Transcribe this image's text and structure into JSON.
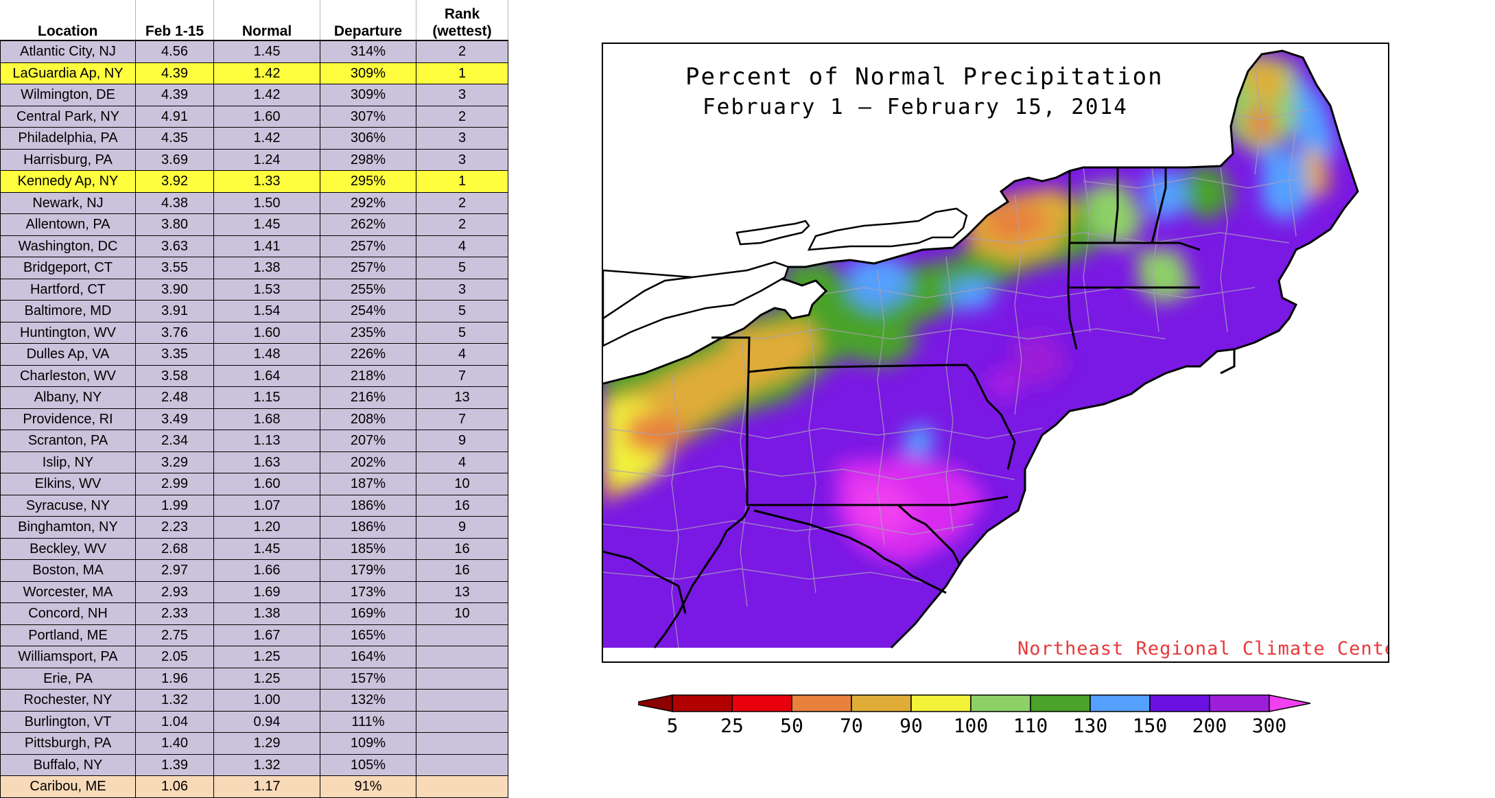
{
  "table": {
    "headers": {
      "location": "Location",
      "feb": "Feb 1-15",
      "normal": "Normal",
      "departure": "Departure",
      "rank": "Rank\n(wettest)"
    },
    "rows": [
      {
        "location": "Atlantic City, NJ",
        "feb": "4.56",
        "normal": "1.45",
        "departure": "314%",
        "rank": "2",
        "style": "normal"
      },
      {
        "location": "LaGuardia Ap, NY",
        "feb": "4.39",
        "normal": "1.42",
        "departure": "309%",
        "rank": "1",
        "style": "highlight"
      },
      {
        "location": "Wilmington, DE",
        "feb": "4.39",
        "normal": "1.42",
        "departure": "309%",
        "rank": "3",
        "style": "normal"
      },
      {
        "location": "Central Park, NY",
        "feb": "4.91",
        "normal": "1.60",
        "departure": "307%",
        "rank": "2",
        "style": "normal"
      },
      {
        "location": "Philadelphia, PA",
        "feb": "4.35",
        "normal": "1.42",
        "departure": "306%",
        "rank": "3",
        "style": "normal"
      },
      {
        "location": "Harrisburg, PA",
        "feb": "3.69",
        "normal": "1.24",
        "departure": "298%",
        "rank": "3",
        "style": "normal"
      },
      {
        "location": "Kennedy Ap, NY",
        "feb": "3.92",
        "normal": "1.33",
        "departure": "295%",
        "rank": "1",
        "style": "highlight"
      },
      {
        "location": "Newark, NJ",
        "feb": "4.38",
        "normal": "1.50",
        "departure": "292%",
        "rank": "2",
        "style": "normal"
      },
      {
        "location": "Allentown, PA",
        "feb": "3.80",
        "normal": "1.45",
        "departure": "262%",
        "rank": "2",
        "style": "normal"
      },
      {
        "location": "Washington, DC",
        "feb": "3.63",
        "normal": "1.41",
        "departure": "257%",
        "rank": "4",
        "style": "normal"
      },
      {
        "location": "Bridgeport, CT",
        "feb": "3.55",
        "normal": "1.38",
        "departure": "257%",
        "rank": "5",
        "style": "normal"
      },
      {
        "location": "Hartford, CT",
        "feb": "3.90",
        "normal": "1.53",
        "departure": "255%",
        "rank": "3",
        "style": "normal"
      },
      {
        "location": "Baltimore, MD",
        "feb": "3.91",
        "normal": "1.54",
        "departure": "254%",
        "rank": "5",
        "style": "normal"
      },
      {
        "location": "Huntington, WV",
        "feb": "3.76",
        "normal": "1.60",
        "departure": "235%",
        "rank": "5",
        "style": "normal"
      },
      {
        "location": "Dulles Ap, VA",
        "feb": "3.35",
        "normal": "1.48",
        "departure": "226%",
        "rank": "4",
        "style": "normal"
      },
      {
        "location": "Charleston, WV",
        "feb": "3.58",
        "normal": "1.64",
        "departure": "218%",
        "rank": "7",
        "style": "normal"
      },
      {
        "location": "Albany, NY",
        "feb": "2.48",
        "normal": "1.15",
        "departure": "216%",
        "rank": "13",
        "style": "normal"
      },
      {
        "location": "Providence, RI",
        "feb": "3.49",
        "normal": "1.68",
        "departure": "208%",
        "rank": "7",
        "style": "normal"
      },
      {
        "location": "Scranton, PA",
        "feb": "2.34",
        "normal": "1.13",
        "departure": "207%",
        "rank": "9",
        "style": "normal"
      },
      {
        "location": "Islip, NY",
        "feb": "3.29",
        "normal": "1.63",
        "departure": "202%",
        "rank": "4",
        "style": "normal"
      },
      {
        "location": "Elkins, WV",
        "feb": "2.99",
        "normal": "1.60",
        "departure": "187%",
        "rank": "10",
        "style": "normal"
      },
      {
        "location": "Syracuse, NY",
        "feb": "1.99",
        "normal": "1.07",
        "departure": "186%",
        "rank": "16",
        "style": "normal"
      },
      {
        "location": "Binghamton, NY",
        "feb": "2.23",
        "normal": "1.20",
        "departure": "186%",
        "rank": "9",
        "style": "normal"
      },
      {
        "location": "Beckley, WV",
        "feb": "2.68",
        "normal": "1.45",
        "departure": "185%",
        "rank": "16",
        "style": "normal"
      },
      {
        "location": "Boston, MA",
        "feb": "2.97",
        "normal": "1.66",
        "departure": "179%",
        "rank": "16",
        "style": "normal"
      },
      {
        "location": "Worcester, MA",
        "feb": "2.93",
        "normal": "1.69",
        "departure": "173%",
        "rank": "13",
        "style": "normal"
      },
      {
        "location": "Concord, NH",
        "feb": "2.33",
        "normal": "1.38",
        "departure": "169%",
        "rank": "10",
        "style": "normal"
      },
      {
        "location": "Portland, ME",
        "feb": "2.75",
        "normal": "1.67",
        "departure": "165%",
        "rank": "",
        "style": "normal"
      },
      {
        "location": "Williamsport, PA",
        "feb": "2.05",
        "normal": "1.25",
        "departure": "164%",
        "rank": "",
        "style": "normal"
      },
      {
        "location": "Erie, PA",
        "feb": "1.96",
        "normal": "1.25",
        "departure": "157%",
        "rank": "",
        "style": "normal"
      },
      {
        "location": "Rochester, NY",
        "feb": "1.32",
        "normal": "1.00",
        "departure": "132%",
        "rank": "",
        "style": "normal"
      },
      {
        "location": "Burlington, VT",
        "feb": "1.04",
        "normal": "0.94",
        "departure": "111%",
        "rank": "",
        "style": "normal"
      },
      {
        "location": "Pittsburgh, PA",
        "feb": "1.40",
        "normal": "1.29",
        "departure": "109%",
        "rank": "",
        "style": "normal"
      },
      {
        "location": "Buffalo, NY",
        "feb": "1.39",
        "normal": "1.32",
        "departure": "105%",
        "rank": "",
        "style": "normal"
      },
      {
        "location": "Caribou, ME",
        "feb": "1.06",
        "normal": "1.17",
        "departure": "91%",
        "rank": "",
        "style": "below"
      }
    ],
    "colors": {
      "normal": "#cbc3dc",
      "highlight": "#fffe3e",
      "below": "#f8d9b8"
    }
  },
  "map": {
    "title_line1": "Percent of Normal Precipitation",
    "title_line2": "February 1 — February 15, 2014",
    "credit": "Northeast Regional Climate Center",
    "credit_color": "#e8383a"
  },
  "legend": {
    "labels": [
      "5",
      "25",
      "50",
      "70",
      "90",
      "100",
      "110",
      "130",
      "150",
      "200",
      "300"
    ],
    "colors": [
      "#8b0000",
      "#b00000",
      "#e8000c",
      "#e8813c",
      "#e0ac38",
      "#f2f23a",
      "#8ed068",
      "#4aa22a",
      "#54a0ff",
      "#6a10e0",
      "#9d1ed8",
      "#f040f0"
    ]
  }
}
